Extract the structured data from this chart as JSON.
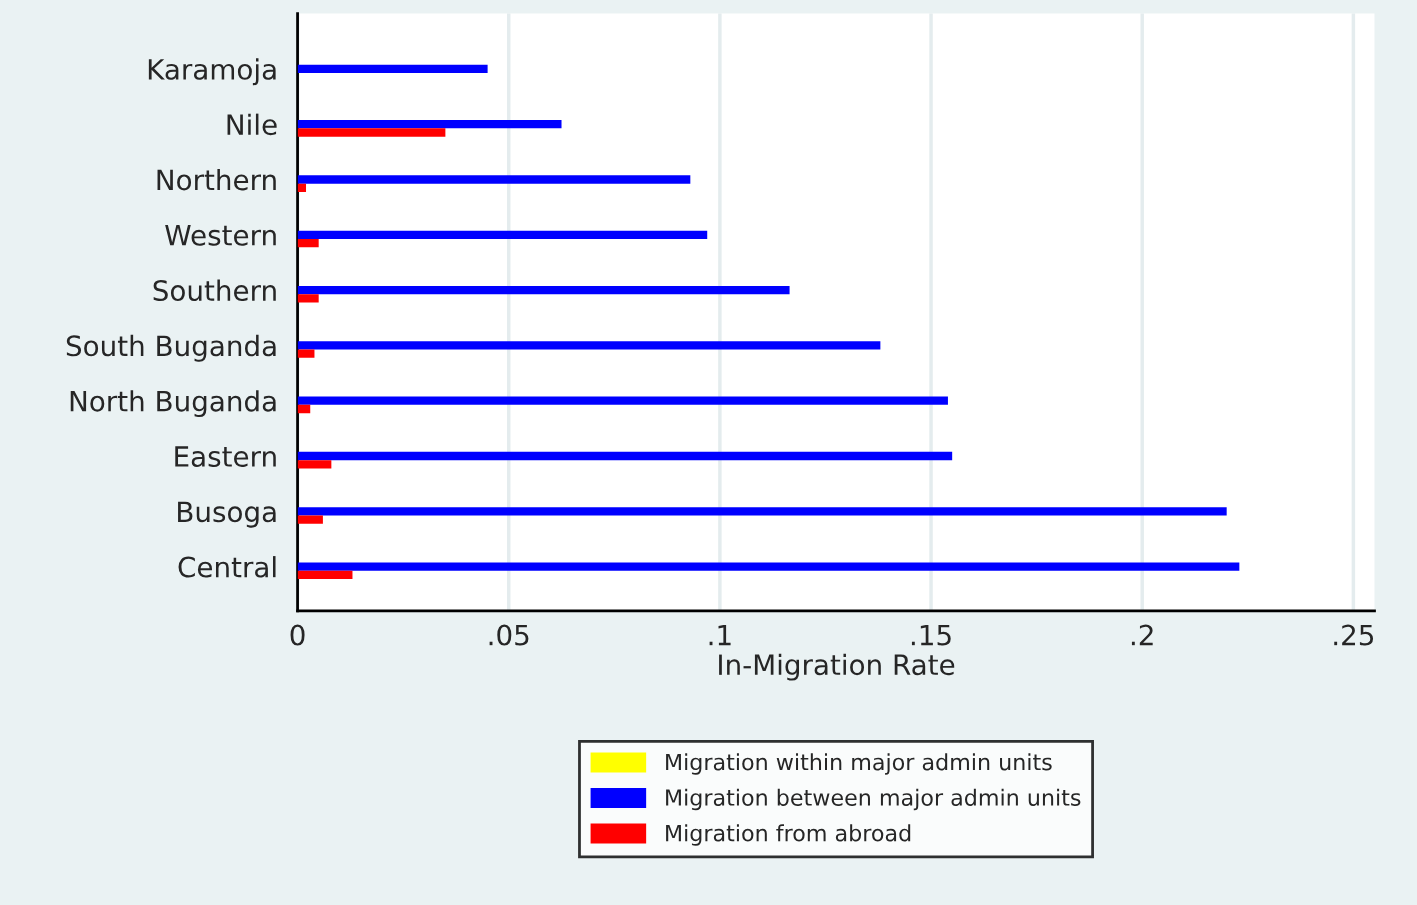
{
  "chart_data": {
    "type": "bar",
    "orientation": "horizontal",
    "categories": [
      "Karamoja",
      "Nile",
      "Northern",
      "Western",
      "Southern",
      "South Buganda",
      "North Buganda",
      "Eastern",
      "Busoga",
      "Central"
    ],
    "series": [
      {
        "name": "Migration within major admin units",
        "color": "#ffff00",
        "values": [
          0,
          0,
          0,
          0,
          0,
          0,
          0,
          0,
          0,
          0
        ]
      },
      {
        "name": "Migration between major admin units",
        "color": "#0000ff",
        "values": [
          0.045,
          0.0625,
          0.093,
          0.097,
          0.1165,
          0.138,
          0.154,
          0.155,
          0.22,
          0.223
        ]
      },
      {
        "name": "Migration from abroad",
        "color": "#ff0000",
        "values": [
          null,
          0.035,
          0.002,
          0.005,
          0.005,
          0.004,
          0.003,
          0.008,
          0.006,
          0.013
        ]
      }
    ],
    "xlabel": "In-Migration Rate",
    "xlim": [
      0,
      0.255
    ],
    "xticks": [
      0,
      {
        "value": 0.05,
        "label": ".05"
      },
      {
        "value": 0.1,
        "label": ".1"
      },
      {
        "value": 0.15,
        "label": ".15"
      },
      {
        "value": 0.2,
        "label": ".2"
      },
      {
        "value": 0.25,
        "label": ".25"
      }
    ],
    "grid": "x",
    "legend": "bottom"
  }
}
